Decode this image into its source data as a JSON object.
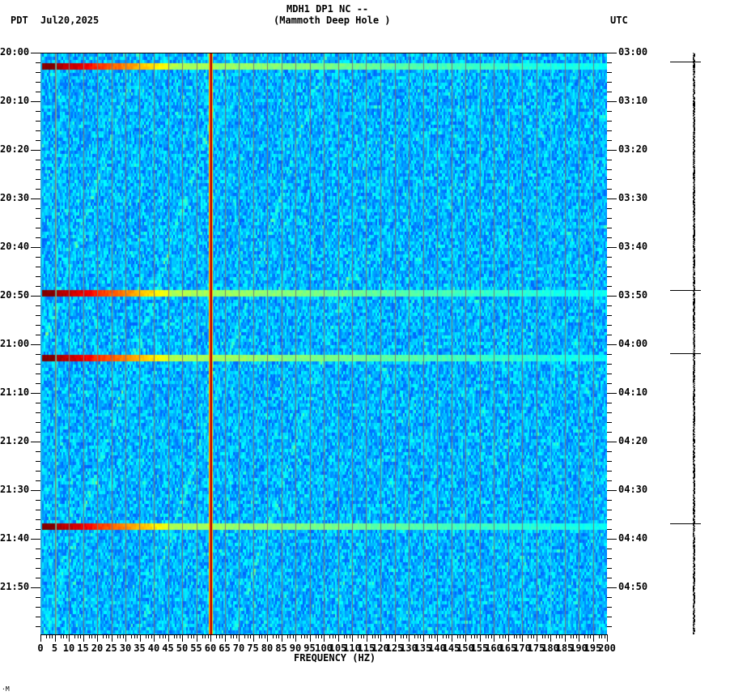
{
  "header": {
    "station_line": "MDH1 DP1 NC --",
    "station_name": "(Mammoth Deep Hole )",
    "tz_left": "PDT",
    "date": "Jul20,2025",
    "tz_right": "UTC"
  },
  "corner_mark": "·M",
  "colors": {
    "background": "#0a5cff",
    "grid": "#7a7a7a",
    "event_red": "#800000",
    "line60": "#b00000"
  },
  "chart_data": {
    "type": "heatmap",
    "title": "MDH1 DP1 NC -- (Mammoth Deep Hole )",
    "xlabel": "FREQUENCY (HZ)",
    "ylabel_left": "PDT",
    "ylabel_right": "UTC",
    "xlim": [
      0,
      200
    ],
    "x_ticks": [
      "0",
      "5",
      "10",
      "15",
      "20",
      "25",
      "30",
      "35",
      "40",
      "45",
      "50",
      "55",
      "60",
      "65",
      "70",
      "75",
      "80",
      "85",
      "90",
      "95",
      "100",
      "105",
      "110",
      "115",
      "120",
      "125",
      "130",
      "135",
      "140",
      "145",
      "150",
      "155",
      "160",
      "165",
      "170",
      "175",
      "180",
      "185",
      "190",
      "195",
      "200"
    ],
    "y_ticks_left": [
      "20:00",
      "20:10",
      "20:20",
      "20:30",
      "20:40",
      "20:50",
      "21:00",
      "21:10",
      "21:20",
      "21:30",
      "21:40",
      "21:50"
    ],
    "y_ticks_right": [
      "03:00",
      "03:10",
      "03:20",
      "03:30",
      "03:40",
      "03:50",
      "04:00",
      "04:10",
      "04:20",
      "04:30",
      "04:40",
      "04:50"
    ],
    "time_span_minutes": 120,
    "grid": "vertical lines every 5 Hz",
    "persistent_lines_hz": [
      5,
      60,
      180
    ],
    "events": [
      {
        "time_pdt": "20:02",
        "time_utc": "03:02",
        "energy": "strong low-frequency, broadband to ~200 Hz"
      },
      {
        "time_pdt": "20:49",
        "time_utc": "03:49",
        "energy": "strong low-frequency, broadband to ~200 Hz"
      },
      {
        "time_pdt": "21:02",
        "time_utc": "04:02",
        "energy": "strong low-frequency, broadband to ~200 Hz"
      },
      {
        "time_pdt": "21:37",
        "time_utc": "04:37",
        "energy": "strong low-frequency, broadband to ~200 Hz"
      }
    ],
    "colormap": "jet (blue low, red high)"
  },
  "trace": {
    "marker_times_pdt": [
      "20:02",
      "20:49",
      "21:02",
      "21:37"
    ]
  }
}
